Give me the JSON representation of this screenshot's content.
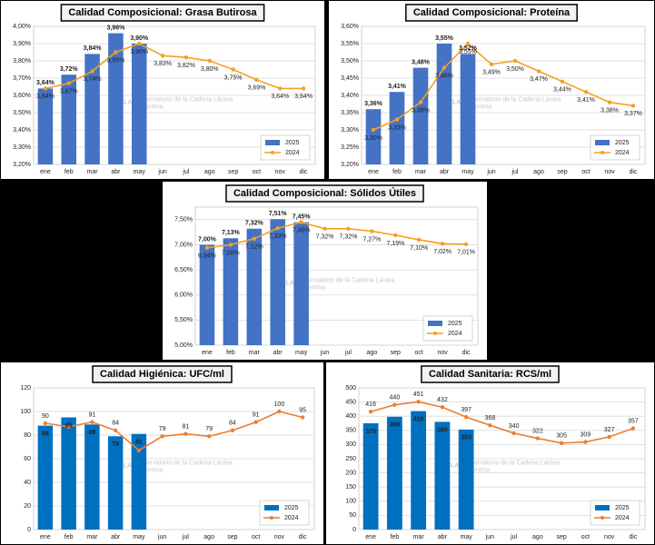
{
  "watermark": {
    "logo": "OCLA",
    "text": "Observatorio de la Cadena Láctea",
    "sub": "Argentina"
  },
  "chart_data": [
    {
      "type": "bar-line",
      "title": "Calidad Composicional: Grasa Butirosa",
      "categories": [
        "ene",
        "feb",
        "mar",
        "abr",
        "may",
        "jun",
        "jul",
        "ago",
        "sep",
        "oct",
        "nov",
        "dic"
      ],
      "ylim": [
        3.2,
        4.0
      ],
      "yticks": [
        {
          "value": 3.2,
          "label": "3,20%"
        },
        {
          "value": 3.3,
          "label": "3,30%"
        },
        {
          "value": 3.4,
          "label": "3,40%"
        },
        {
          "value": 3.5,
          "label": "3,50%"
        },
        {
          "value": 3.6,
          "label": "3,60%"
        },
        {
          "value": 3.7,
          "label": "3,70%"
        },
        {
          "value": 3.8,
          "label": "3,80%"
        },
        {
          "value": 3.9,
          "label": "3,90%"
        },
        {
          "value": 4.0,
          "label": "4,00%"
        }
      ],
      "grid": true,
      "legend": "lower right",
      "series": [
        {
          "name": "2025",
          "kind": "bar",
          "color": "#4472c4",
          "values": [
            3.64,
            3.72,
            3.84,
            3.96,
            3.9,
            null,
            null,
            null,
            null,
            null,
            null,
            null
          ],
          "value_labels": [
            "3,64%",
            "3,72%",
            "3,84%",
            "3,96%",
            "3,90%",
            null,
            null,
            null,
            null,
            null,
            null,
            null
          ]
        },
        {
          "name": "2024",
          "kind": "line",
          "color": "#f4a024",
          "values": [
            3.64,
            3.67,
            3.74,
            3.85,
            3.9,
            3.83,
            3.82,
            3.8,
            3.75,
            3.69,
            3.64,
            3.64
          ],
          "value_labels": [
            "3,64%",
            "3,67%",
            "3,74%",
            "3,85%",
            "3,90%",
            "3,83%",
            "3,82%",
            "3,80%",
            "3,75%",
            "3,69%",
            "3,64%",
            "3,64%"
          ]
        }
      ]
    },
    {
      "type": "bar-line",
      "title": "Calidad Composicional: Proteína",
      "categories": [
        "ene",
        "feb",
        "mar",
        "abr",
        "may",
        "jun",
        "jul",
        "ago",
        "sep",
        "oct",
        "nov",
        "dic"
      ],
      "ylim": [
        3.2,
        3.6
      ],
      "yticks": [
        {
          "value": 3.2,
          "label": "3,20%"
        },
        {
          "value": 3.25,
          "label": "3,25%"
        },
        {
          "value": 3.3,
          "label": "3,30%"
        },
        {
          "value": 3.35,
          "label": "3,35%"
        },
        {
          "value": 3.4,
          "label": "3,40%"
        },
        {
          "value": 3.45,
          "label": "3,45%"
        },
        {
          "value": 3.5,
          "label": "3,50%"
        },
        {
          "value": 3.55,
          "label": "3,55%"
        },
        {
          "value": 3.6,
          "label": "3,60%"
        }
      ],
      "grid": true,
      "legend": "lower right",
      "series": [
        {
          "name": "2025",
          "kind": "bar",
          "color": "#4472c4",
          "values": [
            3.36,
            3.41,
            3.48,
            3.55,
            3.52,
            null,
            null,
            null,
            null,
            null,
            null,
            null
          ],
          "value_labels": [
            "3,36%",
            "3,41%",
            "3,48%",
            "3,55%",
            "3,52%",
            null,
            null,
            null,
            null,
            null,
            null,
            null
          ]
        },
        {
          "name": "2024",
          "kind": "line",
          "color": "#f4a024",
          "values": [
            3.3,
            3.33,
            3.38,
            3.48,
            3.55,
            3.49,
            3.5,
            3.47,
            3.44,
            3.41,
            3.38,
            3.37
          ],
          "value_labels": [
            "3,30%",
            "3,33%",
            "3,38%",
            "3,48%",
            "3,55%",
            "3,49%",
            "3,50%",
            "3,47%",
            "3,44%",
            "3,41%",
            "3,38%",
            "3,37%"
          ]
        }
      ]
    },
    {
      "type": "bar-line",
      "title": "Calidad Composicional: Sólidos Útiles",
      "categories": [
        "ene",
        "feb",
        "mar",
        "abr",
        "may",
        "jun",
        "jul",
        "ago",
        "sep",
        "oct",
        "nov",
        "dic"
      ],
      "ylim": [
        5.0,
        7.75
      ],
      "yticks": [
        {
          "value": 5.0,
          "label": "5,00%"
        },
        {
          "value": 5.5,
          "label": "5,50%"
        },
        {
          "value": 6.0,
          "label": "6,00%"
        },
        {
          "value": 6.5,
          "label": "6,50%"
        },
        {
          "value": 7.0,
          "label": "7,00%"
        },
        {
          "value": 7.5,
          "label": "7,50%"
        }
      ],
      "grid": true,
      "legend": "lower right",
      "series": [
        {
          "name": "2025",
          "kind": "bar",
          "color": "#4472c4",
          "values": [
            7.0,
            7.13,
            7.32,
            7.51,
            7.45,
            null,
            null,
            null,
            null,
            null,
            null,
            null
          ],
          "value_labels": [
            "7,00%",
            "7,13%",
            "7,32%",
            "7,51%",
            "7,45%",
            null,
            null,
            null,
            null,
            null,
            null,
            null
          ]
        },
        {
          "name": "2024",
          "kind": "line",
          "color": "#f4a024",
          "values": [
            6.94,
            7.0,
            7.12,
            7.33,
            7.45,
            7.32,
            7.32,
            7.27,
            7.19,
            7.1,
            7.02,
            7.01
          ],
          "value_labels": [
            "6,94%",
            "7,00%",
            "7,12%",
            "7,33%",
            "7,45%",
            "7,32%",
            "7,32%",
            "7,27%",
            "7,19%",
            "7,10%",
            "7,02%",
            "7,01%"
          ]
        }
      ]
    },
    {
      "type": "bar-line",
      "title": "Calidad Higiénica: UFC/ml",
      "categories": [
        "ene",
        "feb",
        "mar",
        "abr",
        "may",
        "jun",
        "jul",
        "ago",
        "sep",
        "oct",
        "nov",
        "dic"
      ],
      "ylim": [
        0,
        120
      ],
      "yticks": [
        0,
        20,
        40,
        60,
        80,
        100,
        120
      ],
      "grid": true,
      "legend": "lower right",
      "series": [
        {
          "name": "2025",
          "kind": "bar",
          "color": "#0070c0",
          "values": [
            88,
            95,
            89,
            79,
            81,
            null,
            null,
            null,
            null,
            null,
            null,
            null
          ],
          "value_labels": [
            "88",
            "95",
            "89",
            "79",
            "81",
            null,
            null,
            null,
            null,
            null,
            null,
            null
          ]
        },
        {
          "name": "2024",
          "kind": "line",
          "color": "#ed7d31",
          "values": [
            90,
            87,
            91,
            84,
            67,
            79,
            81,
            79,
            84,
            91,
            100,
            95
          ],
          "value_labels": [
            "90",
            null,
            "91",
            "84",
            null,
            "79",
            "81",
            "79",
            "84",
            "91",
            "100",
            "95"
          ]
        }
      ]
    },
    {
      "type": "bar-line",
      "title": "Calidad Sanitaria: RCS/ml",
      "categories": [
        "ene",
        "feb",
        "mar",
        "abr",
        "may",
        "jun",
        "jul",
        "ago",
        "sep",
        "oct",
        "nov",
        "dic"
      ],
      "ylim": [
        0,
        500
      ],
      "yticks": [
        0,
        50,
        100,
        150,
        200,
        250,
        300,
        350,
        400,
        450,
        500
      ],
      "grid": true,
      "legend": "lower right",
      "series": [
        {
          "name": "2025",
          "kind": "bar",
          "color": "#0070c0",
          "values": [
            375,
            398,
            418,
            380,
            353,
            null,
            null,
            null,
            null,
            null,
            null,
            null
          ],
          "value_labels": [
            "375",
            "398",
            "418",
            "380",
            "353",
            null,
            null,
            null,
            null,
            null,
            null,
            null
          ]
        },
        {
          "name": "2024",
          "kind": "line",
          "color": "#ed7d31",
          "values": [
            416,
            440,
            451,
            432,
            397,
            368,
            340,
            322,
            305,
            309,
            327,
            357
          ],
          "value_labels": [
            "416",
            "440",
            "451",
            "432",
            "397",
            "368",
            "340",
            "322",
            "305",
            "309",
            "327",
            "357"
          ]
        }
      ]
    }
  ]
}
